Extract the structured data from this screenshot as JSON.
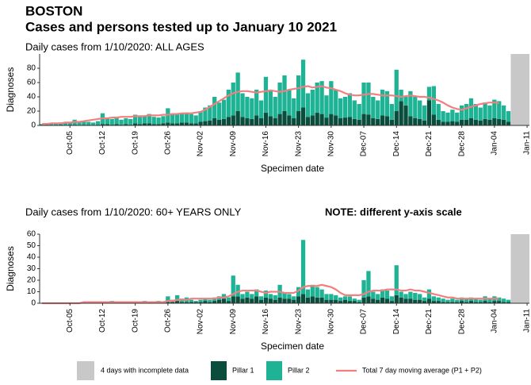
{
  "header": {
    "title": "BOSTON",
    "subtitle": "Cases and persons tested up to January 10 2021",
    "note": "NOTE: different y-axis scale"
  },
  "legend": {
    "shade_label": "4 days with incomplete data",
    "shade_days": 4,
    "shade_color": "#c8c8c8"
  },
  "chart_data": [
    {
      "type": "stacked_bar_line",
      "title": "Daily cases from 1/10/2020: ALL AGES",
      "y_label": "Diagnoses",
      "x_label": "Specimen date",
      "categories": [
        null,
        null,
        null,
        null,
        null,
        null,
        "Oct-05",
        null,
        null,
        null,
        null,
        null,
        null,
        "Oct-12",
        null,
        null,
        null,
        null,
        null,
        null,
        "Oct-19",
        null,
        null,
        null,
        null,
        null,
        null,
        "Oct-26",
        null,
        null,
        null,
        null,
        null,
        null,
        "Nov-02",
        null,
        null,
        null,
        null,
        null,
        null,
        "Nov-09",
        null,
        null,
        null,
        null,
        null,
        null,
        "Nov-16",
        null,
        null,
        null,
        null,
        null,
        null,
        "Nov-23",
        null,
        null,
        null,
        null,
        null,
        null,
        "Nov-30",
        null,
        null,
        null,
        null,
        null,
        null,
        "Dec-07",
        null,
        null,
        null,
        null,
        null,
        null,
        "Dec-14",
        null,
        null,
        null,
        null,
        null,
        null,
        "Dec-21",
        null,
        null,
        null,
        null,
        null,
        null,
        "Dec-28",
        null,
        null,
        null,
        null,
        null,
        null,
        "Jan-04",
        null,
        null,
        null,
        null,
        null,
        null,
        "Jan-11"
      ],
      "ylim": [
        0,
        100
      ],
      "yticks": [
        0,
        20,
        40,
        60,
        80
      ],
      "series": [
        {
          "name": "Pillar 1",
          "kind": "bar",
          "color": "#0b4d3c",
          "values": [
            0,
            1,
            0,
            0,
            1,
            0,
            1,
            1,
            0,
            1,
            1,
            0,
            1,
            2,
            2,
            1,
            2,
            1,
            2,
            1,
            3,
            2,
            3,
            3,
            2,
            2,
            3,
            4,
            3,
            3,
            4,
            4,
            3,
            3,
            5,
            6,
            7,
            10,
            8,
            9,
            12,
            14,
            20,
            12,
            10,
            9,
            14,
            10,
            18,
            13,
            10,
            16,
            20,
            14,
            10,
            20,
            25,
            12,
            14,
            18,
            16,
            11,
            16,
            14,
            10,
            11,
            12,
            9,
            8,
            16,
            15,
            10,
            9,
            14,
            13,
            8,
            20,
            34,
            28,
            13,
            10,
            9,
            7,
            35,
            15,
            8,
            5,
            5,
            6,
            5,
            8,
            8,
            10,
            8,
            7,
            9,
            8,
            10,
            9,
            8,
            5,
            4,
            2,
            1,
            null
          ]
        },
        {
          "name": "Pillar 2",
          "kind": "bar",
          "color": "#1db394",
          "values": [
            2,
            2,
            2,
            3,
            3,
            3,
            3,
            7,
            5,
            5,
            4,
            4,
            5,
            15,
            8,
            8,
            10,
            7,
            8,
            8,
            12,
            10,
            11,
            13,
            10,
            9,
            10,
            20,
            12,
            13,
            13,
            14,
            13,
            11,
            15,
            19,
            21,
            30,
            24,
            27,
            38,
            46,
            54,
            33,
            30,
            29,
            36,
            25,
            50,
            35,
            30,
            44,
            50,
            36,
            28,
            50,
            67,
            33,
            36,
            42,
            46,
            31,
            46,
            36,
            28,
            29,
            33,
            26,
            22,
            44,
            45,
            30,
            26,
            36,
            35,
            22,
            58,
            16,
            12,
            35,
            30,
            26,
            21,
            19,
            40,
            22,
            15,
            13,
            16,
            13,
            20,
            22,
            28,
            22,
            18,
            23,
            20,
            26,
            25,
            20,
            15,
            10,
            6,
            4,
            null
          ]
        },
        {
          "name": "Total 7 day moving average (P1 + P2)",
          "kind": "line",
          "color": "#f08080",
          "values": [
            2,
            2,
            3,
            3,
            3,
            4,
            4,
            5,
            5,
            6,
            7,
            8,
            9,
            10,
            10,
            11,
            11,
            12,
            12,
            12,
            13,
            13,
            13,
            14,
            14,
            14,
            15,
            15,
            16,
            16,
            17,
            17,
            17,
            18,
            19,
            22,
            26,
            30,
            34,
            38,
            42,
            45,
            47,
            48,
            48,
            47,
            46,
            47,
            48,
            49,
            48,
            47,
            48,
            50,
            51,
            52,
            54,
            55,
            53,
            54,
            55,
            53,
            52,
            50,
            48,
            45,
            43,
            42,
            42,
            43,
            44,
            44,
            43,
            42,
            42,
            42,
            41,
            40,
            41,
            42,
            41,
            40,
            40,
            39,
            37,
            35,
            32,
            28,
            25,
            23,
            22,
            24,
            26,
            28,
            30,
            31,
            32,
            32,
            31,
            null,
            null,
            null,
            null,
            null,
            null
          ]
        }
      ]
    },
    {
      "type": "stacked_bar_line",
      "title": "Daily cases from 1/10/2020: 60+ YEARS ONLY",
      "y_label": "Diagnoses",
      "x_label": "Specimen date",
      "categories": [
        null,
        null,
        null,
        null,
        null,
        null,
        "Oct-05",
        null,
        null,
        null,
        null,
        null,
        null,
        "Oct-12",
        null,
        null,
        null,
        null,
        null,
        null,
        "Oct-19",
        null,
        null,
        null,
        null,
        null,
        null,
        "Oct-26",
        null,
        null,
        null,
        null,
        null,
        null,
        "Nov-02",
        null,
        null,
        null,
        null,
        null,
        null,
        "Nov-09",
        null,
        null,
        null,
        null,
        null,
        null,
        "Nov-16",
        null,
        null,
        null,
        null,
        null,
        null,
        "Nov-23",
        null,
        null,
        null,
        null,
        null,
        null,
        "Nov-30",
        null,
        null,
        null,
        null,
        null,
        null,
        "Dec-07",
        null,
        null,
        null,
        null,
        null,
        null,
        "Dec-14",
        null,
        null,
        null,
        null,
        null,
        null,
        "Dec-21",
        null,
        null,
        null,
        null,
        null,
        null,
        "Dec-28",
        null,
        null,
        null,
        null,
        null,
        null,
        "Jan-04",
        null,
        null,
        null,
        null,
        null,
        null,
        "Jan-11"
      ],
      "ylim": [
        0,
        60
      ],
      "yticks": [
        0,
        10,
        20,
        30,
        40,
        50,
        60
      ],
      "series": [
        {
          "name": "Pillar 1",
          "kind": "bar",
          "color": "#0b4d3c",
          "values": [
            0,
            0,
            0,
            0,
            0,
            0,
            0,
            0,
            0,
            0,
            0,
            0,
            0,
            0,
            1,
            1,
            0,
            0,
            0,
            1,
            0,
            0,
            1,
            0,
            0,
            1,
            0,
            1,
            1,
            2,
            1,
            1,
            1,
            1,
            1,
            2,
            1,
            2,
            3,
            4,
            2,
            6,
            6,
            4,
            5,
            4,
            6,
            3,
            5,
            4,
            3,
            5,
            4,
            4,
            3,
            6,
            8,
            5,
            6,
            5,
            5,
            3,
            3,
            3,
            2,
            3,
            2,
            2,
            1,
            5,
            6,
            4,
            3,
            5,
            4,
            2,
            7,
            5,
            4,
            4,
            3,
            3,
            2,
            4,
            2,
            2,
            1,
            1,
            1,
            1,
            2,
            1,
            2,
            1,
            1,
            2,
            1,
            2,
            2,
            1,
            1,
            1,
            0,
            0,
            null
          ]
        },
        {
          "name": "Pillar 2",
          "kind": "bar",
          "color": "#1db394",
          "values": [
            0,
            0,
            0,
            0,
            0,
            0,
            0,
            0,
            0,
            0,
            1,
            0,
            0,
            1,
            0,
            1,
            1,
            1,
            1,
            0,
            1,
            1,
            1,
            1,
            1,
            1,
            1,
            5,
            2,
            5,
            3,
            4,
            2,
            1,
            2,
            2,
            2,
            3,
            3,
            4,
            3,
            18,
            10,
            4,
            5,
            4,
            6,
            3,
            6,
            4,
            4,
            11,
            5,
            4,
            3,
            8,
            47,
            7,
            10,
            9,
            7,
            5,
            5,
            4,
            3,
            3,
            4,
            2,
            2,
            15,
            22,
            6,
            5,
            7,
            7,
            4,
            26,
            5,
            4,
            6,
            6,
            5,
            3,
            8,
            4,
            3,
            3,
            2,
            3,
            2,
            3,
            3,
            3,
            3,
            2,
            4,
            3,
            4,
            3,
            3,
            2,
            1,
            1,
            1,
            null
          ]
        },
        {
          "name": "Total 7 day moving average (P1 + P2)",
          "kind": "line",
          "color": "#f08080",
          "values": [
            0,
            0,
            0,
            0,
            0,
            0,
            0,
            0,
            0,
            1,
            1,
            1,
            1,
            1,
            1,
            1,
            1,
            1,
            1,
            1,
            1,
            1,
            1,
            1,
            1,
            1,
            1,
            2,
            2,
            3,
            3,
            3,
            4,
            4,
            4,
            4,
            4,
            4,
            5,
            5,
            6,
            8,
            10,
            11,
            11,
            11,
            11,
            10,
            9,
            10,
            10,
            10,
            9,
            9,
            9,
            11,
            14,
            15,
            15,
            15,
            16,
            15,
            14,
            12,
            9,
            7,
            7,
            7,
            7,
            8,
            10,
            11,
            11,
            11,
            12,
            12,
            12,
            11,
            11,
            12,
            11,
            11,
            10,
            9,
            8,
            7,
            6,
            5,
            5,
            4,
            4,
            4,
            4,
            4,
            4,
            4,
            4,
            4,
            4,
            null,
            null,
            null,
            null,
            null,
            null
          ]
        }
      ]
    }
  ]
}
